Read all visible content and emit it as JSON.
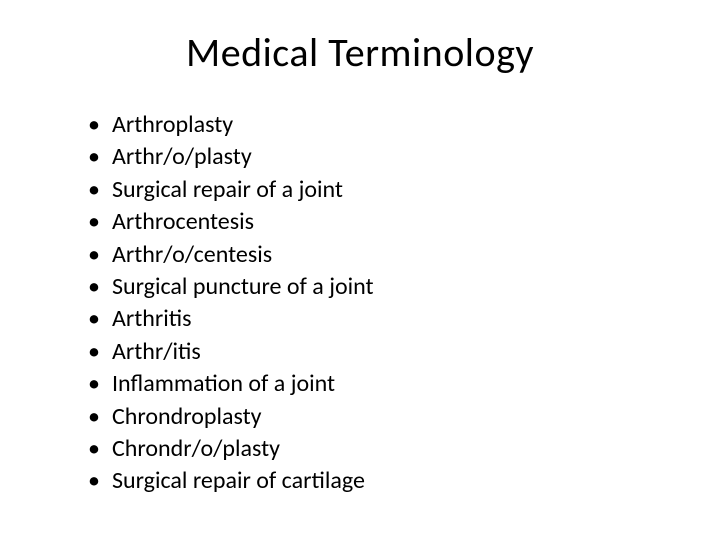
{
  "slide": {
    "title": "Medical Terminology",
    "bullets": [
      "Arthroplasty",
      "Arthr/o/plasty",
      "Surgical repair of a joint",
      "Arthrocentesis",
      "Arthr/o/centesis",
      "Surgical puncture of a joint",
      "Arthritis",
      "Arthr/itis",
      "Inflammation of a joint",
      "Chrondroplasty",
      "Chrondr/o/plasty",
      "Surgical repair of cartilage"
    ]
  },
  "colors": {
    "background": "#ffffff",
    "text": "#000000"
  },
  "typography": {
    "title_fontsize": 40,
    "bullet_fontsize": 24,
    "font_family": "Calibri"
  }
}
